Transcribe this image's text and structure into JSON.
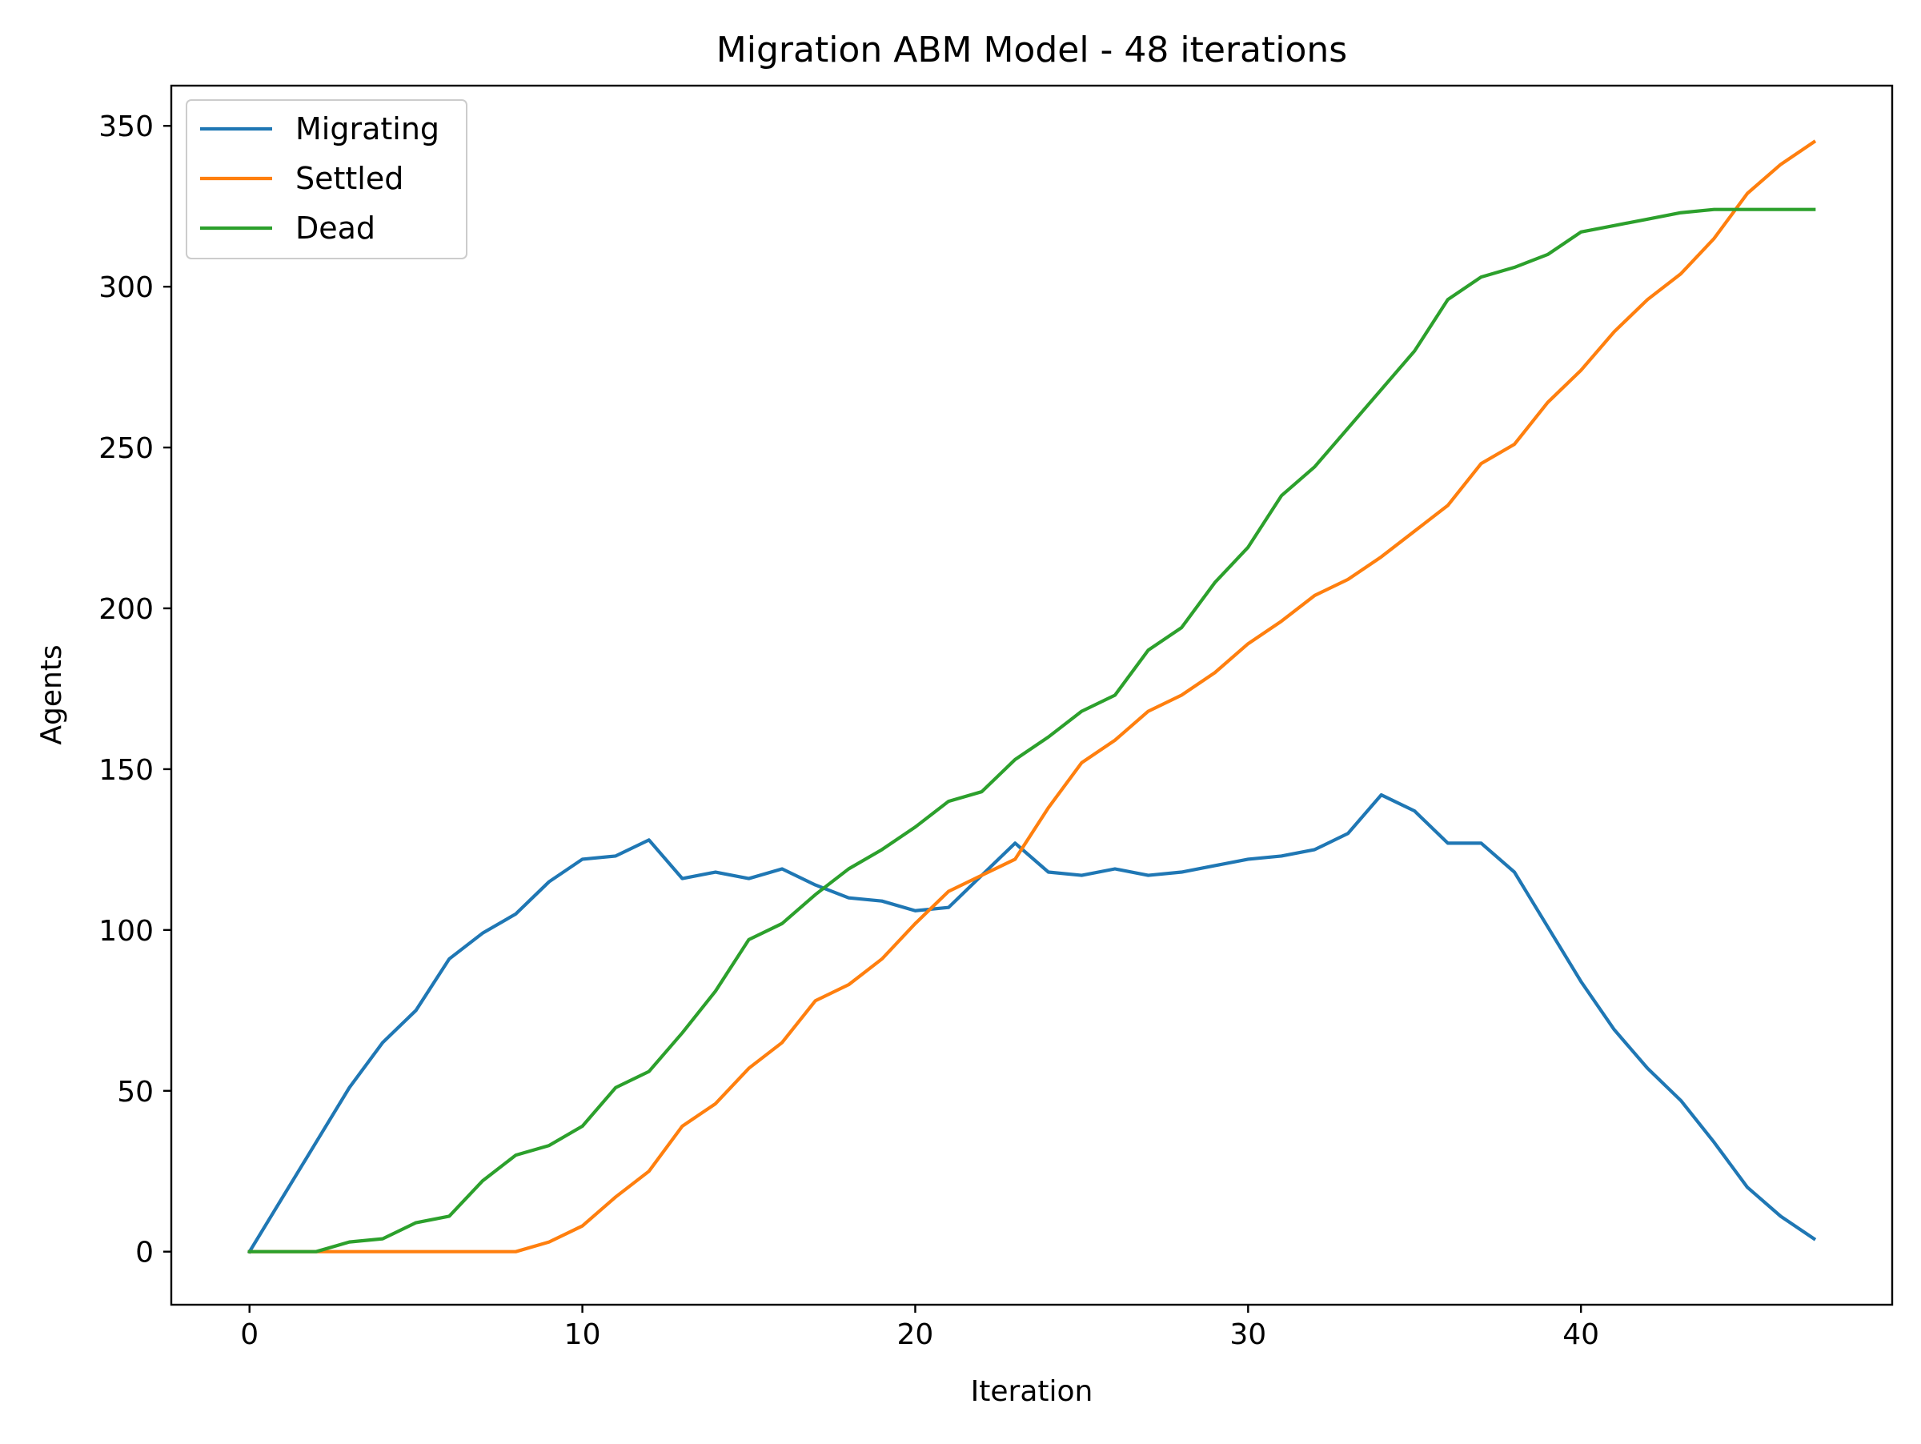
{
  "chart_data": {
    "type": "line",
    "title": "Migration ABM Model - 48 iterations",
    "xlabel": "Iteration",
    "ylabel": "Agents",
    "xlim": [
      -2.35,
      49.35
    ],
    "ylim": [
      -16.5,
      362.5
    ],
    "xticks": [
      0,
      10,
      20,
      30,
      40
    ],
    "yticks": [
      0,
      50,
      100,
      150,
      200,
      250,
      300,
      350
    ],
    "grid": false,
    "legend_position": "top-left",
    "x": [
      0,
      1,
      2,
      3,
      4,
      5,
      6,
      7,
      8,
      9,
      10,
      11,
      12,
      13,
      14,
      15,
      16,
      17,
      18,
      19,
      20,
      21,
      22,
      23,
      24,
      25,
      26,
      27,
      28,
      29,
      30,
      31,
      32,
      33,
      34,
      35,
      36,
      37,
      38,
      39,
      40,
      41,
      42,
      43,
      44,
      45,
      46,
      47
    ],
    "series": [
      {
        "name": "Migrating",
        "color": "#1f77b4",
        "values": [
          0,
          17,
          34,
          51,
          65,
          75,
          91,
          99,
          105,
          115,
          122,
          123,
          128,
          116,
          118,
          116,
          119,
          114,
          110,
          109,
          106,
          107,
          117,
          127,
          118,
          117,
          119,
          117,
          118,
          120,
          122,
          123,
          125,
          130,
          142,
          137,
          127,
          127,
          118,
          101,
          84,
          69,
          57,
          47,
          34,
          20,
          11,
          4
        ]
      },
      {
        "name": "Settled",
        "color": "#ff7f0e",
        "values": [
          0,
          0,
          0,
          0,
          0,
          0,
          0,
          0,
          0,
          3,
          8,
          17,
          25,
          39,
          46,
          57,
          65,
          78,
          83,
          91,
          102,
          112,
          117,
          122,
          138,
          152,
          159,
          168,
          173,
          180,
          189,
          196,
          204,
          209,
          216,
          224,
          232,
          245,
          251,
          264,
          274,
          286,
          296,
          304,
          315,
          329,
          338,
          345
        ]
      },
      {
        "name": "Dead",
        "color": "#2ca02c",
        "values": [
          0,
          0,
          0,
          3,
          4,
          9,
          11,
          22,
          30,
          33,
          39,
          51,
          56,
          68,
          81,
          97,
          102,
          111,
          119,
          125,
          132,
          140,
          143,
          153,
          160,
          168,
          173,
          187,
          194,
          208,
          219,
          235,
          244,
          256,
          268,
          280,
          296,
          303,
          306,
          310,
          317,
          319,
          321,
          323,
          324,
          324,
          324,
          324
        ]
      }
    ]
  }
}
